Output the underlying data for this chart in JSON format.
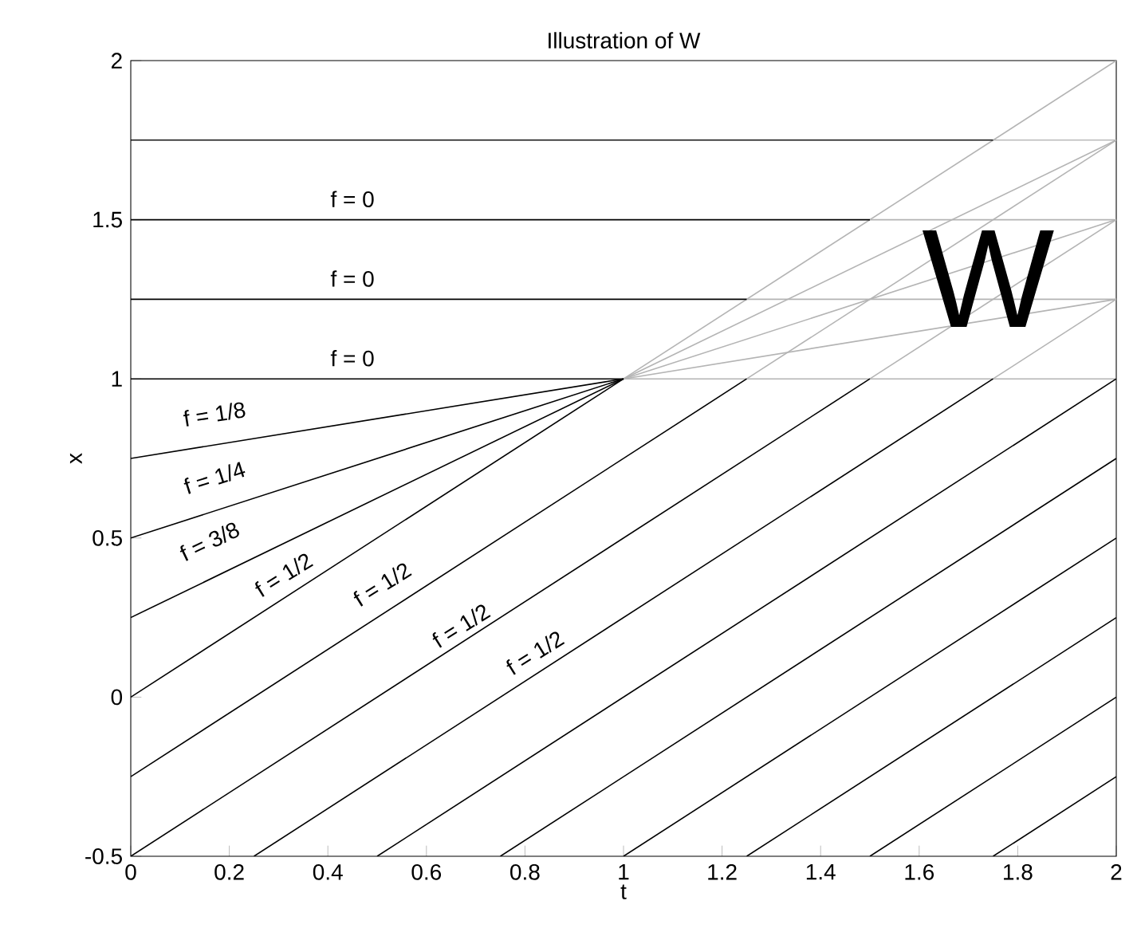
{
  "chart_data": {
    "type": "line",
    "title": "Illustration of W",
    "xlabel": "t",
    "ylabel": "x",
    "xlim": [
      0,
      2
    ],
    "ylim": [
      -0.5,
      2
    ],
    "xticks": [
      0,
      0.2,
      0.4,
      0.6,
      0.8,
      1,
      1.2,
      1.4,
      1.6,
      1.8,
      2
    ],
    "yticks": [
      -0.5,
      0,
      0.5,
      1,
      1.5,
      2
    ],
    "series": [
      {
        "color": "#b4b4b4",
        "x": [
          1,
          2
        ],
        "values": [
          1,
          2
        ]
      },
      {
        "color": "#b4b4b4",
        "x": [
          1,
          2
        ],
        "values": [
          1,
          1.75
        ]
      },
      {
        "color": "#b4b4b4",
        "x": [
          1,
          2
        ],
        "values": [
          1,
          1.5
        ]
      },
      {
        "color": "#b4b4b4",
        "x": [
          1,
          2
        ],
        "values": [
          1,
          1.25
        ]
      },
      {
        "color": "#b4b4b4",
        "x": [
          1.25,
          2
        ],
        "values": [
          1,
          1.75
        ]
      },
      {
        "color": "#b4b4b4",
        "x": [
          1.5,
          2
        ],
        "values": [
          1,
          1.5
        ]
      },
      {
        "color": "#b4b4b4",
        "x": [
          1.75,
          2
        ],
        "values": [
          1,
          1.25
        ]
      },
      {
        "color": "#b4b4b4",
        "x": [
          1,
          2
        ],
        "values": [
          1,
          1
        ]
      },
      {
        "color": "#b4b4b4",
        "x": [
          1.25,
          2
        ],
        "values": [
          1.25,
          1.25
        ]
      },
      {
        "color": "#b4b4b4",
        "x": [
          1.5,
          2
        ],
        "values": [
          1.5,
          1.5
        ]
      },
      {
        "color": "#b4b4b4",
        "x": [
          1.75,
          2
        ],
        "values": [
          1.75,
          1.75
        ]
      },
      {
        "color": "#000000",
        "x": [
          0,
          1
        ],
        "values": [
          1,
          1
        ]
      },
      {
        "color": "#000000",
        "x": [
          0,
          1.25
        ],
        "values": [
          1.25,
          1.25
        ]
      },
      {
        "color": "#000000",
        "x": [
          0,
          1.5
        ],
        "values": [
          1.5,
          1.5
        ]
      },
      {
        "color": "#000000",
        "x": [
          0,
          1.75
        ],
        "values": [
          1.75,
          1.75
        ]
      },
      {
        "color": "#000000",
        "x": [
          0,
          1
        ],
        "values": [
          0.75,
          1
        ]
      },
      {
        "color": "#000000",
        "x": [
          0,
          1
        ],
        "values": [
          0.5,
          1
        ]
      },
      {
        "color": "#000000",
        "x": [
          0,
          1
        ],
        "values": [
          0.25,
          1
        ]
      },
      {
        "color": "#000000",
        "x": [
          0,
          1
        ],
        "values": [
          0,
          1
        ]
      },
      {
        "color": "#000000",
        "x": [
          0,
          1.25
        ],
        "values": [
          -0.25,
          1
        ]
      },
      {
        "color": "#000000",
        "x": [
          0,
          1.5
        ],
        "values": [
          -0.5,
          1
        ]
      },
      {
        "color": "#000000",
        "x": [
          0.25,
          1.75
        ],
        "values": [
          -0.5,
          1
        ]
      },
      {
        "color": "#000000",
        "x": [
          0.5,
          2
        ],
        "values": [
          -0.5,
          1
        ]
      },
      {
        "color": "#000000",
        "x": [
          0.75,
          2
        ],
        "values": [
          -0.5,
          0.75
        ]
      },
      {
        "color": "#000000",
        "x": [
          1,
          2
        ],
        "values": [
          -0.5,
          0.5
        ]
      },
      {
        "color": "#000000",
        "x": [
          1.25,
          2
        ],
        "values": [
          -0.5,
          0.25
        ]
      },
      {
        "color": "#000000",
        "x": [
          1.5,
          2
        ],
        "values": [
          -0.5,
          0
        ]
      },
      {
        "color": "#000000",
        "x": [
          1.75,
          2
        ],
        "values": [
          -0.5,
          -0.25
        ]
      }
    ],
    "annotations": [
      "f = 0",
      "f = 0",
      "f = 0",
      "f = 1/8",
      "f = 1/4",
      "f = 3/8",
      "f = 1/2",
      "f = 1/2",
      "f = 1/2",
      "f = 1/2",
      "W"
    ]
  }
}
